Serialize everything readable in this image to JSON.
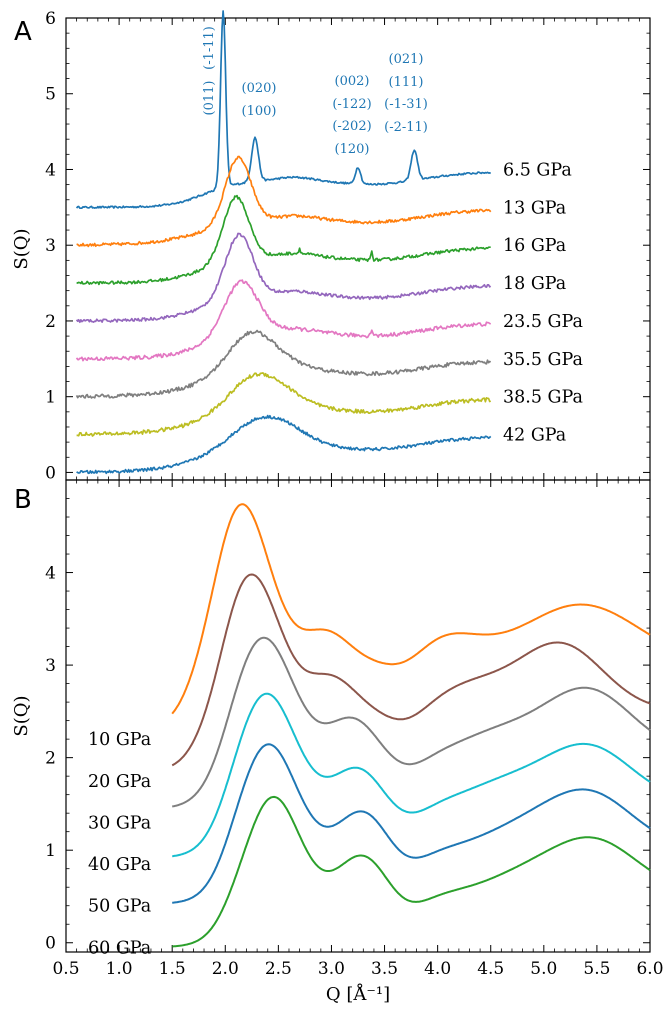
{
  "chart_data": [
    {
      "panel": "A",
      "type": "line",
      "ylabel": "S(Q)",
      "xlim": [
        0.5,
        6.0
      ],
      "ylim": [
        -0.1,
        6.0
      ],
      "yticks": [
        "0",
        "1",
        "2",
        "3",
        "4",
        "5",
        "6"
      ],
      "series": [
        {
          "name": "6.5 GPa",
          "color": "#1f77b4",
          "offset": 3.5
        },
        {
          "name": "13 GPa",
          "color": "#ff7f0e",
          "offset": 3.0
        },
        {
          "name": "16 GPa",
          "color": "#2ca02c",
          "offset": 2.5
        },
        {
          "name": "18 GPa",
          "color": "#9467bd",
          "offset": 2.0
        },
        {
          "name": "23.5 GPa",
          "color": "#e377c2",
          "offset": 1.5
        },
        {
          "name": "35.5 GPa",
          "color": "#7f7f7f",
          "offset": 1.0
        },
        {
          "name": "38.5 GPa",
          "color": "#bcbd22",
          "offset": 0.5
        },
        {
          "name": "42 GPa",
          "color": "#1f77b4",
          "offset": 0.0
        }
      ],
      "annotations": [
        {
          "text": "(011)",
          "vertical": true
        },
        {
          "text": "(-1-11)",
          "vertical": true
        },
        {
          "text": "(020)"
        },
        {
          "text": "(100)"
        },
        {
          "text": "(002)"
        },
        {
          "text": "(-122)"
        },
        {
          "text": "(-202)"
        },
        {
          "text": "(120)"
        },
        {
          "text": "(021)"
        },
        {
          "text": "(111)"
        },
        {
          "text": "(-1-31)"
        },
        {
          "text": "(-2-11)"
        }
      ]
    },
    {
      "panel": "B",
      "type": "line",
      "xlabel": "Q [Å⁻¹]",
      "ylabel": "S(Q)",
      "xlim": [
        0.5,
        6.0
      ],
      "ylim": [
        -0.1,
        5.0
      ],
      "xticks": [
        "0.5",
        "1.0",
        "1.5",
        "2.0",
        "2.5",
        "3.0",
        "3.5",
        "4.0",
        "4.5",
        "5.0",
        "5.5",
        "6.0"
      ],
      "yticks": [
        "0",
        "1",
        "2",
        "3",
        "4"
      ],
      "series": [
        {
          "name": "10 GPa",
          "color": "#ff7f0e"
        },
        {
          "name": "20 GPa",
          "color": "#8c564b"
        },
        {
          "name": "30 GPa",
          "color": "#7f7f7f"
        },
        {
          "name": "40 GPa",
          "color": "#17becf"
        },
        {
          "name": "50 GPa",
          "color": "#1f77b4"
        },
        {
          "name": "60 GPa",
          "color": "#2ca02c"
        }
      ]
    }
  ],
  "panel_labels": [
    "A",
    "B"
  ]
}
